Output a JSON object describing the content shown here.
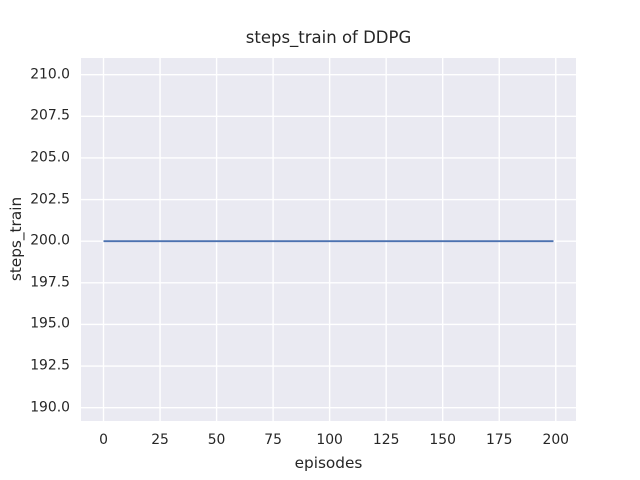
{
  "figure": {
    "background": "#ffffff"
  },
  "chart_data": {
    "type": "line",
    "title": "steps_train of DDPG",
    "xlabel": "episodes",
    "ylabel": "steps_train",
    "xlim": [
      -9.95,
      208.95
    ],
    "ylim": [
      189.2,
      211.0
    ],
    "xticks": [
      0,
      25,
      50,
      75,
      100,
      125,
      150,
      175,
      200
    ],
    "xtick_labels": [
      "0",
      "25",
      "50",
      "75",
      "100",
      "125",
      "150",
      "175",
      "200"
    ],
    "yticks": [
      190.0,
      192.5,
      195.0,
      197.5,
      200.0,
      202.5,
      205.0,
      207.5,
      210.0
    ],
    "ytick_labels": [
      "190.0",
      "192.5",
      "195.0",
      "197.5",
      "200.0",
      "202.5",
      "205.0",
      "207.5",
      "210.0"
    ],
    "grid": true,
    "legend": null,
    "series": [
      {
        "name": "steps_train",
        "color": "#4c72b0",
        "constant_value": 200,
        "points": [
          {
            "x": 0,
            "y": 200
          },
          {
            "x": 199,
            "y": 200
          }
        ]
      }
    ],
    "colors": {
      "axes_background": "#eaeaf2",
      "grid": "#ffffff",
      "text": "#262626",
      "line": "#4c72b0"
    }
  }
}
